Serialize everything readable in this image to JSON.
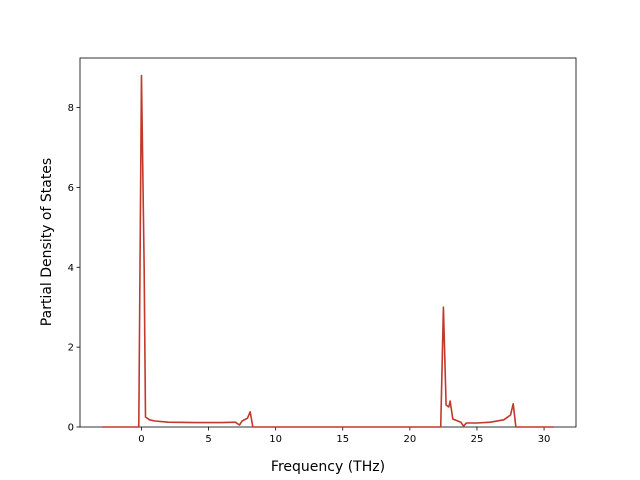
{
  "chart_data": {
    "type": "line",
    "xlabel": "Frequency (THz)",
    "ylabel": "Partial Density of States",
    "x": [
      -2.9,
      -0.2,
      0,
      0.2,
      0.3,
      0.6,
      1,
      2,
      4,
      6,
      7,
      7.3,
      7.5,
      7.9,
      8.1,
      8.3,
      22.3,
      22.5,
      22.7,
      22.9,
      23.0,
      23.2,
      23.8,
      24.0,
      24.2,
      25,
      26,
      27,
      27.5,
      27.7,
      27.9,
      30.7
    ],
    "series": [
      {
        "color": "#c0392b",
        "values": [
          0,
          0,
          8.8,
          4,
          0.25,
          0.18,
          0.15,
          0.12,
          0.11,
          0.11,
          0.12,
          0.05,
          0.15,
          0.22,
          0.38,
          0,
          0,
          3.0,
          0.55,
          0.5,
          0.65,
          0.2,
          0.12,
          0.02,
          0.1,
          0.1,
          0.12,
          0.18,
          0.3,
          0.58,
          0,
          0
        ]
      }
    ],
    "xlim": [
      -4.58,
      32.38
    ],
    "ylim": [
      0,
      9.24
    ],
    "xticks": [
      0,
      5,
      10,
      15,
      20,
      25,
      30
    ],
    "yticks": [
      0,
      2,
      4,
      6,
      8
    ],
    "grid": false
  }
}
